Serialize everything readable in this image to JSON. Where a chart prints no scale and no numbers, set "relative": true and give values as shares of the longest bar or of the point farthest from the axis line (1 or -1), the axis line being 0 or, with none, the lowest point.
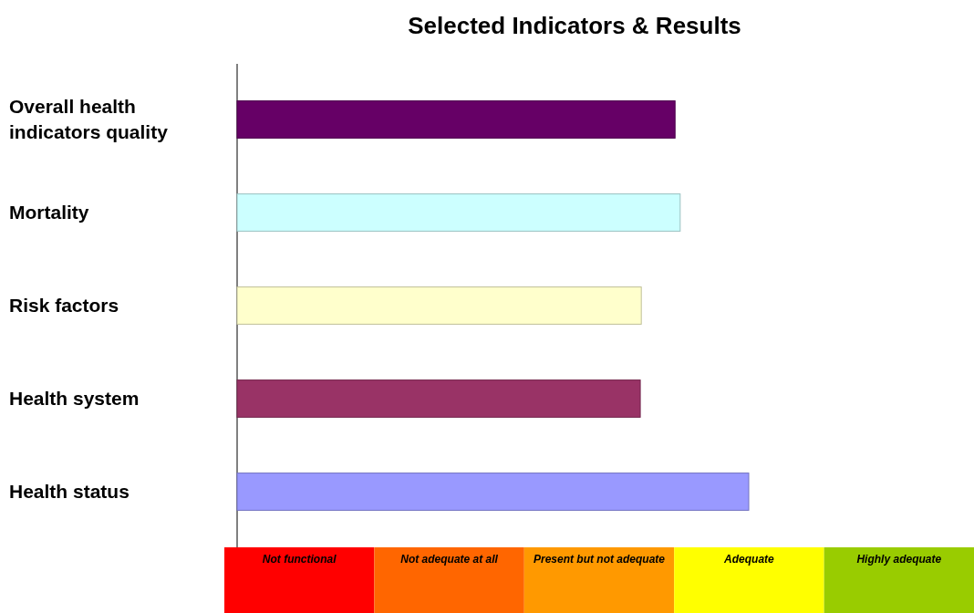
{
  "chart_data": [
    {
      "type": "bar",
      "title": "Selected Indicators & Results",
      "orientation": "horizontal",
      "relative": true,
      "categories": [
        "Overall health indicators quality",
        "Mortality",
        "Risk factors",
        "Health system",
        "Health status"
      ],
      "values": [
        0.856,
        0.866,
        0.79,
        0.788,
        1
      ],
      "colors": [
        "#660066",
        "#ccffff",
        "#ffffcc",
        "#993366",
        "#9999ff"
      ]
    },
    {
      "type": "other",
      "categories": [
        "Not functional",
        "Not adequate at all",
        "Present but not adequate",
        "Adequate",
        "Highly adequate"
      ],
      "colors": [
        "#ff0000",
        "#ff6600",
        "#ff9900",
        "#ffff00",
        "#99cc00"
      ]
    }
  ]
}
